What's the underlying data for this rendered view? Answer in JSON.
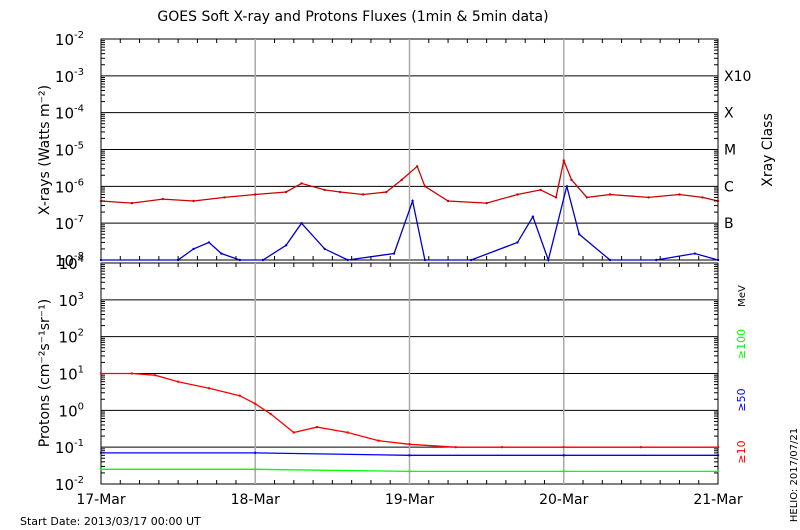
{
  "figure": {
    "title": "GOES Soft X-ray and Protons Fluxes   (1min & 5min data)",
    "start_date_label": "Start Date: 2013/03/17 00:00 UT",
    "credit": "HELIO: 2017/07/21"
  },
  "chart_data": [
    {
      "type": "line",
      "panel": "xrays",
      "ylabel": "X-rays (Watts m⁻²)",
      "yscale": "log",
      "ylim": [
        1e-08,
        0.01
      ],
      "y_ticks": [
        {
          "mant": "10",
          "exp": "-8"
        },
        {
          "mant": "10",
          "exp": "-7"
        },
        {
          "mant": "10",
          "exp": "-6"
        },
        {
          "mant": "10",
          "exp": "-5"
        },
        {
          "mant": "10",
          "exp": "-4"
        },
        {
          "mant": "10",
          "exp": "-3"
        },
        {
          "mant": "10",
          "exp": "-2"
        }
      ],
      "right_axis_title": "Xray Class",
      "class_labels": [
        {
          "label": "B",
          "level": 1e-07
        },
        {
          "label": "C",
          "level": 1e-06
        },
        {
          "label": "M",
          "level": 1e-05
        },
        {
          "label": "X",
          "level": 0.0001
        },
        {
          "label": "X10",
          "level": 0.001
        }
      ],
      "x_ticks": [
        "17-Mar",
        "18-Mar",
        "19-Mar",
        "20-Mar",
        "21-Mar"
      ],
      "xlim_days": [
        0,
        4
      ],
      "grid": true,
      "series": [
        {
          "color": "#cc0000",
          "x": [
            0,
            0.2,
            0.4,
            0.6,
            0.8,
            1.0,
            1.2,
            1.3,
            1.45,
            1.55,
            1.7,
            1.85,
            1.95,
            2.05,
            2.1,
            2.25,
            2.5,
            2.7,
            2.85,
            2.95,
            3.0,
            3.05,
            3.15,
            3.3,
            3.55,
            3.75,
            3.9,
            4.0
          ],
          "y": [
            4e-07,
            3.5e-07,
            4.5e-07,
            4e-07,
            5e-07,
            6e-07,
            7e-07,
            1.2e-06,
            8e-07,
            7e-07,
            6e-07,
            7e-07,
            1.5e-06,
            3.5e-06,
            1e-06,
            4e-07,
            3.5e-07,
            6e-07,
            8e-07,
            5e-07,
            5e-06,
            1.5e-06,
            5e-07,
            6e-07,
            5e-07,
            6e-07,
            5e-07,
            4e-07
          ]
        },
        {
          "color": "#0000cc",
          "x": [
            0,
            0.5,
            0.6,
            0.7,
            0.78,
            0.9,
            1.05,
            1.2,
            1.3,
            1.45,
            1.6,
            1.9,
            2.02,
            2.1,
            2.4,
            2.7,
            2.8,
            2.9,
            3.02,
            3.1,
            3.3,
            3.6,
            3.85,
            4.0
          ],
          "y": [
            1e-08,
            1e-08,
            2e-08,
            3e-08,
            1.5e-08,
            1e-08,
            1e-08,
            2.5e-08,
            1e-07,
            2e-08,
            1e-08,
            1.5e-08,
            4e-07,
            1e-08,
            1e-08,
            3e-08,
            1.5e-07,
            1e-08,
            1e-06,
            5e-08,
            1e-08,
            1e-08,
            1.5e-08,
            1e-08
          ]
        }
      ]
    },
    {
      "type": "line",
      "panel": "protons",
      "ylabel": "Protons (cm⁻²s⁻¹sr⁻¹)",
      "yscale": "log",
      "ylim": [
        0.01,
        10000
      ],
      "y_ticks": [
        {
          "mant": "10",
          "exp": "-2"
        },
        {
          "mant": "10",
          "exp": "-1"
        },
        {
          "mant": "10",
          "exp": "0"
        },
        {
          "mant": "10",
          "exp": "1"
        },
        {
          "mant": "10",
          "exp": "2"
        },
        {
          "mant": "10",
          "exp": "3"
        },
        {
          "mant": "10",
          "exp": "4"
        }
      ],
      "unit_label": "MeV",
      "dashed_threshold": 10,
      "x_ticks": [
        "17-Mar",
        "18-Mar",
        "19-Mar",
        "20-Mar",
        "21-Mar"
      ],
      "xlim_days": [
        0,
        4
      ],
      "grid": true,
      "series": [
        {
          "name": "≥10",
          "color": "#ff0000",
          "x": [
            0,
            0.2,
            0.35,
            0.5,
            0.7,
            0.9,
            1.0,
            1.1,
            1.25,
            1.4,
            1.6,
            1.8,
            2.0,
            2.3,
            2.6,
            3.0,
            3.5,
            4.0
          ],
          "y": [
            10,
            10,
            9,
            6,
            4,
            2.5,
            1.5,
            0.8,
            0.25,
            0.35,
            0.25,
            0.15,
            0.12,
            0.1,
            0.1,
            0.1,
            0.1,
            0.1
          ]
        },
        {
          "name": "≥50",
          "color": "#0000ff",
          "x": [
            0,
            1,
            2,
            3,
            4
          ],
          "y": [
            0.07,
            0.07,
            0.06,
            0.06,
            0.06
          ]
        },
        {
          "name": "≥100",
          "color": "#00ff00",
          "x": [
            0,
            1,
            2,
            3,
            4
          ],
          "y": [
            0.025,
            0.025,
            0.022,
            0.022,
            0.022
          ]
        }
      ]
    }
  ]
}
